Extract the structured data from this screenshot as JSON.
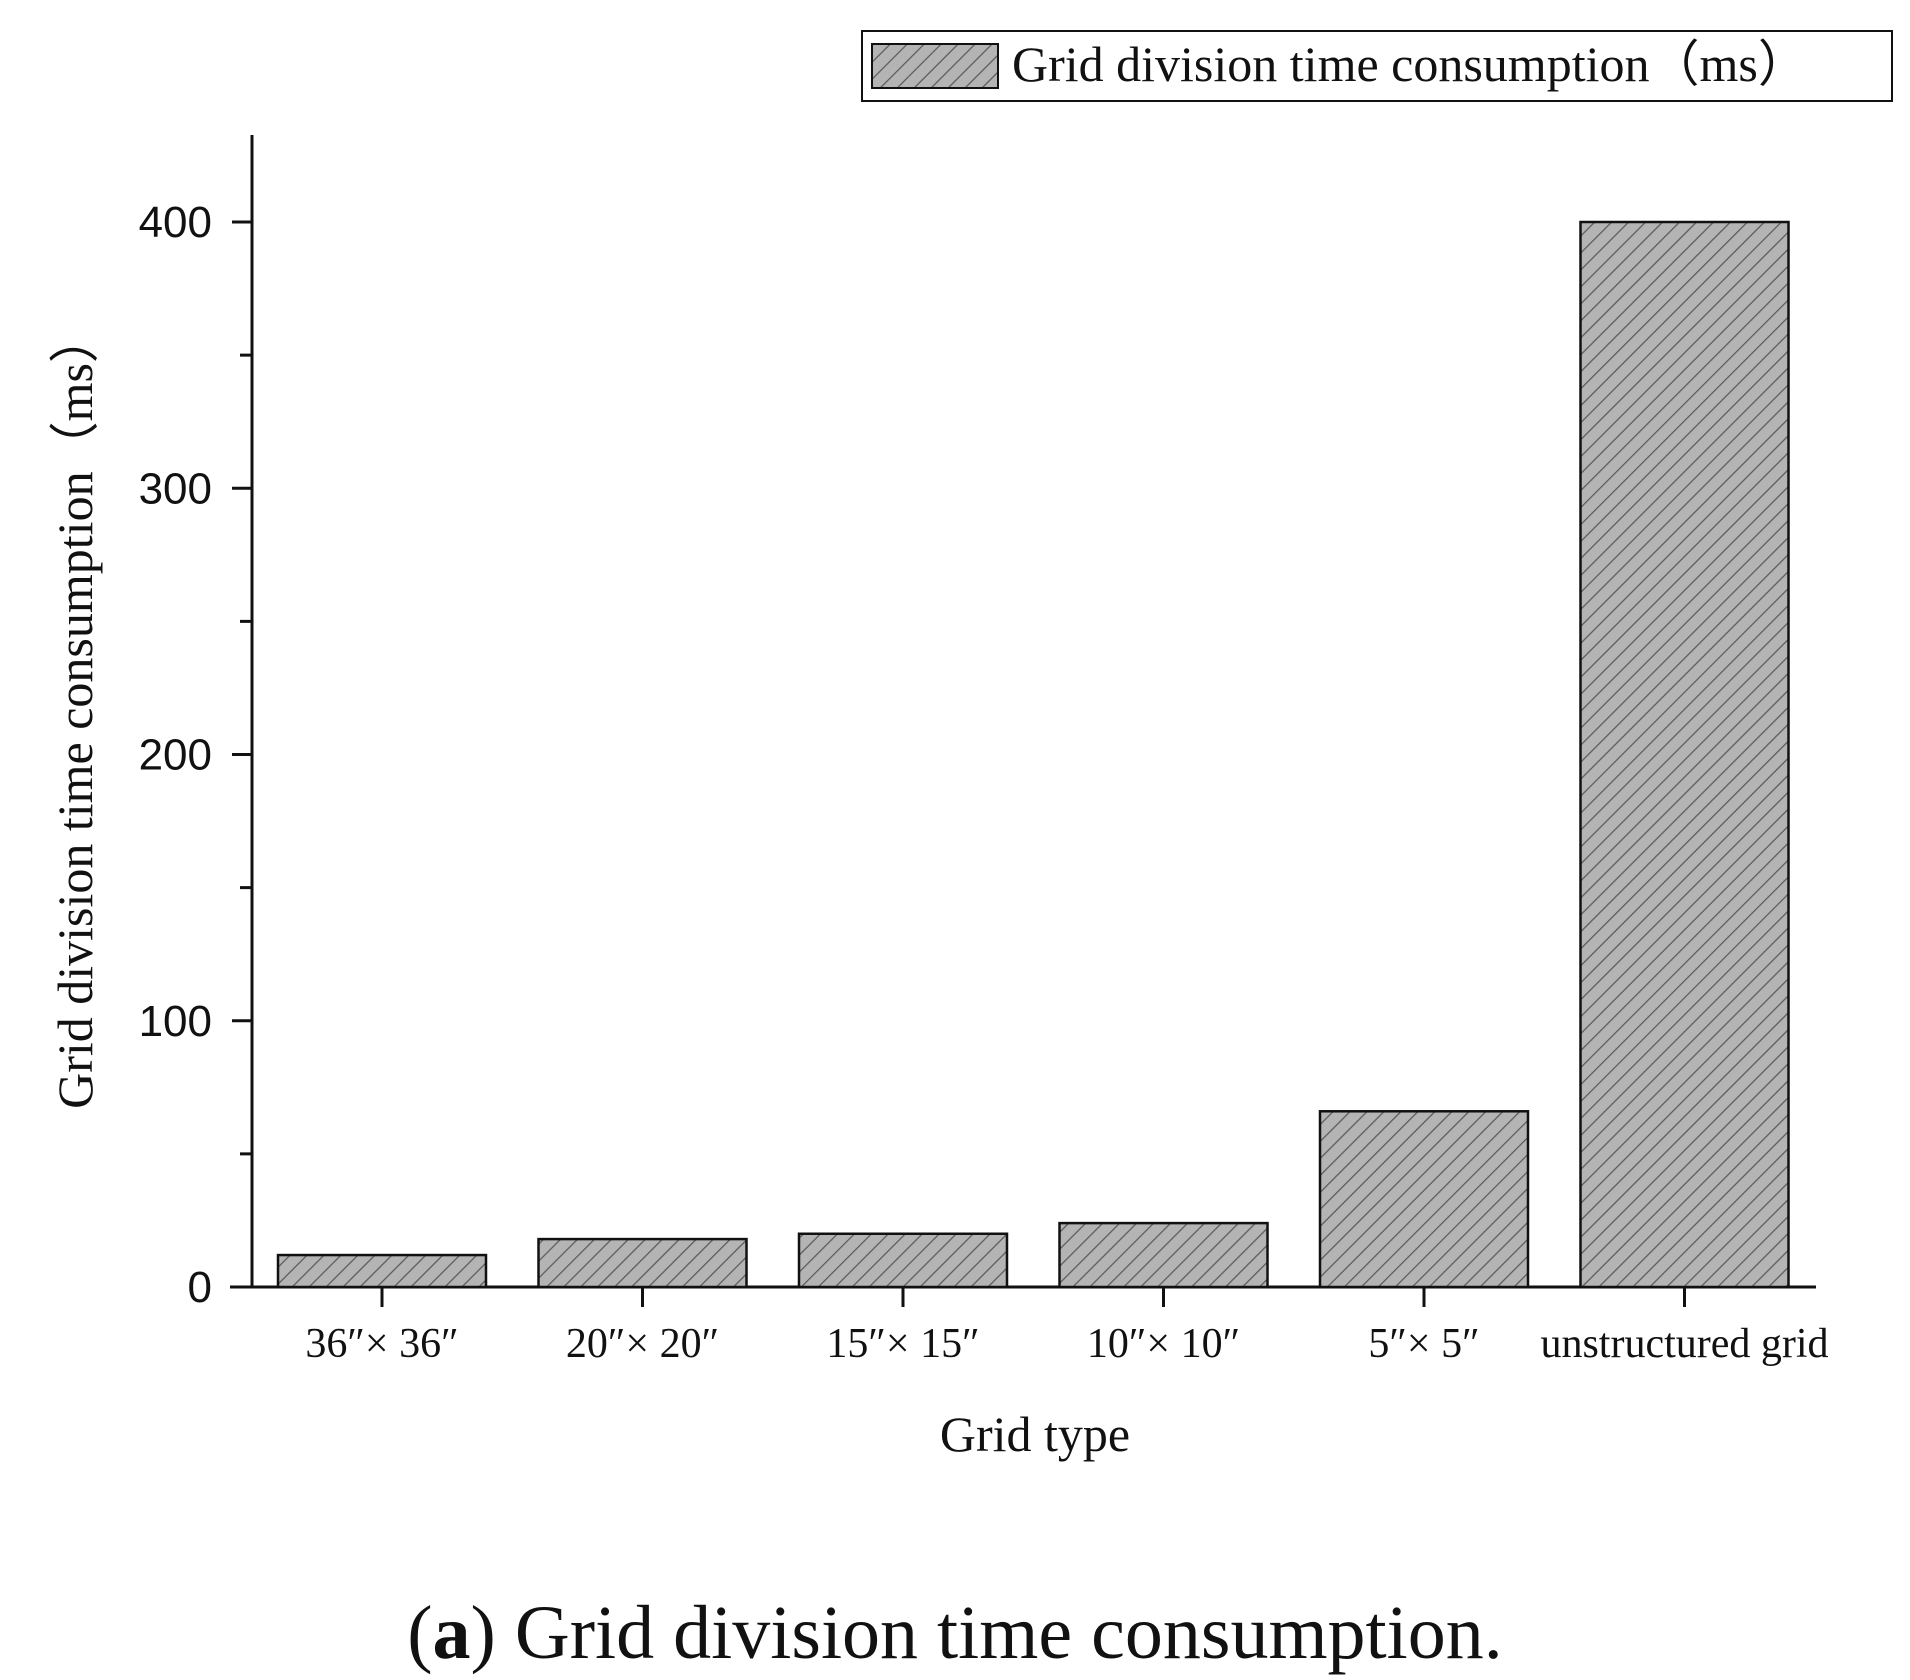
{
  "chart_data": {
    "type": "bar",
    "categories": [
      "36″× 36″",
      "20″× 20″",
      "15″× 15″",
      "10″× 10″",
      "5″× 5″",
      "unstructured grid"
    ],
    "series": [
      {
        "name": "Grid division time consumption（ms）",
        "values": [
          12,
          18,
          20,
          24,
          66,
          400
        ]
      }
    ],
    "ylabel": "Grid division time consumption（ms）",
    "xlabel": "Grid type",
    "ylim": [
      0,
      430
    ],
    "yticks": [
      0,
      100,
      200,
      300,
      400
    ],
    "legend_position": "top-right",
    "grid": false,
    "colors": {
      "bar_fill": "#b4b4b4",
      "hatch": "#5a5a5a",
      "axis": "#111111"
    }
  },
  "caption": {
    "label": "a",
    "text": "Grid division time consumption."
  }
}
